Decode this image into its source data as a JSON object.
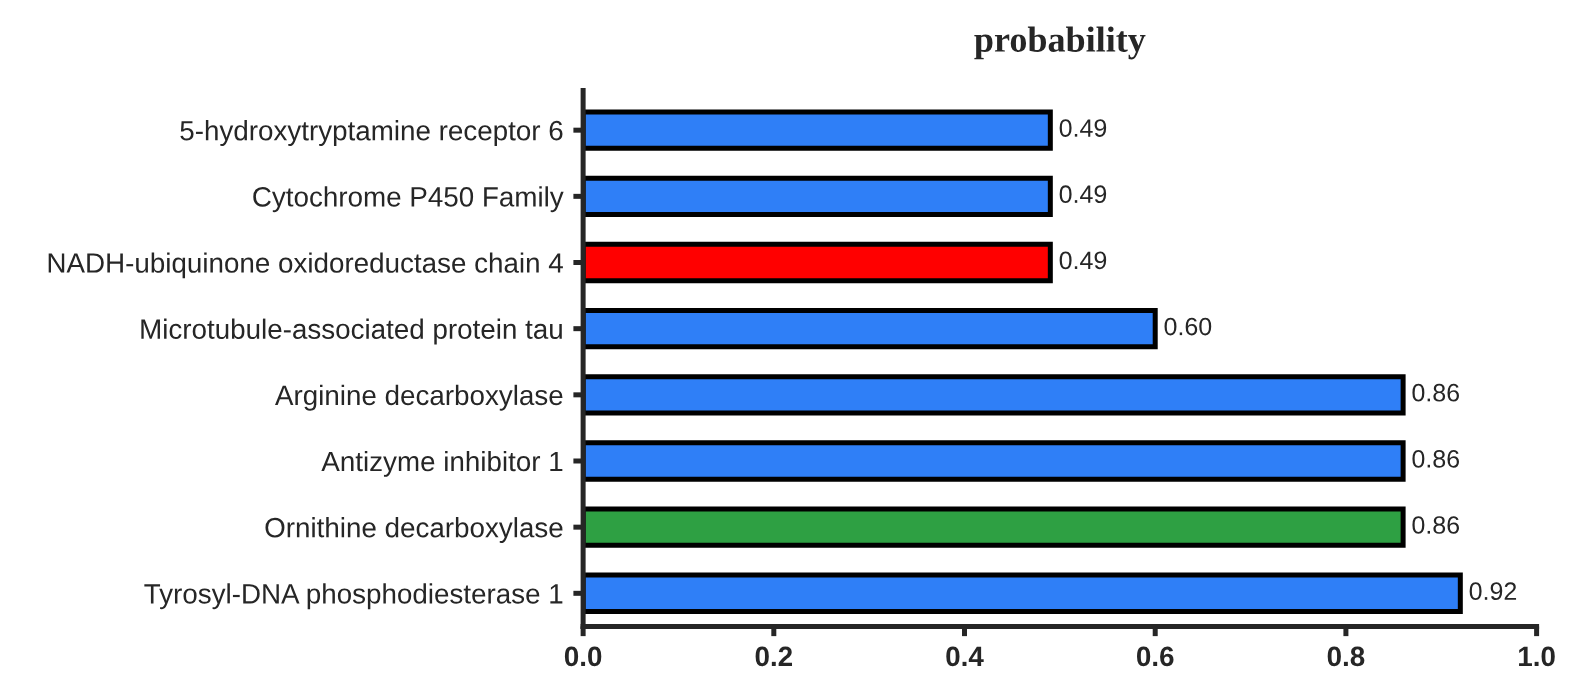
{
  "chart_data": {
    "type": "bar",
    "orientation": "horizontal",
    "title": "probability",
    "categories": [
      "5-hydroxytryptamine receptor 6",
      "Cytochrome P450 Family",
      "NADH-ubiquinone oxidoreductase chain 4",
      "Microtubule-associated protein tau",
      "Arginine decarboxylase",
      "Antizyme inhibitor 1",
      "Ornithine decarboxylase",
      "Tyrosyl-DNA phosphodiesterase 1"
    ],
    "values": [
      0.49,
      0.49,
      0.49,
      0.6,
      0.86,
      0.86,
      0.86,
      0.92
    ],
    "colors": [
      "#2f7ff7",
      "#2f7ff7",
      "#ff0000",
      "#2f7ff7",
      "#2f7ff7",
      "#2f7ff7",
      "#2ea043",
      "#2f7ff7"
    ],
    "value_labels": [
      "0.49",
      "0.49",
      "0.49",
      "0.60",
      "0.86",
      "0.86",
      "0.86",
      "0.92"
    ],
    "xlim": [
      0,
      1.0
    ],
    "xticks": [
      {
        "value": 0.0,
        "label": "0.0"
      },
      {
        "value": 0.2,
        "label": "0.2"
      },
      {
        "value": 0.4,
        "label": "0.4"
      },
      {
        "value": 0.6,
        "label": "0.6"
      },
      {
        "value": 0.8,
        "label": "0.8"
      },
      {
        "value": 1.0,
        "label": "1.0"
      }
    ],
    "grid": false,
    "legend": false
  }
}
